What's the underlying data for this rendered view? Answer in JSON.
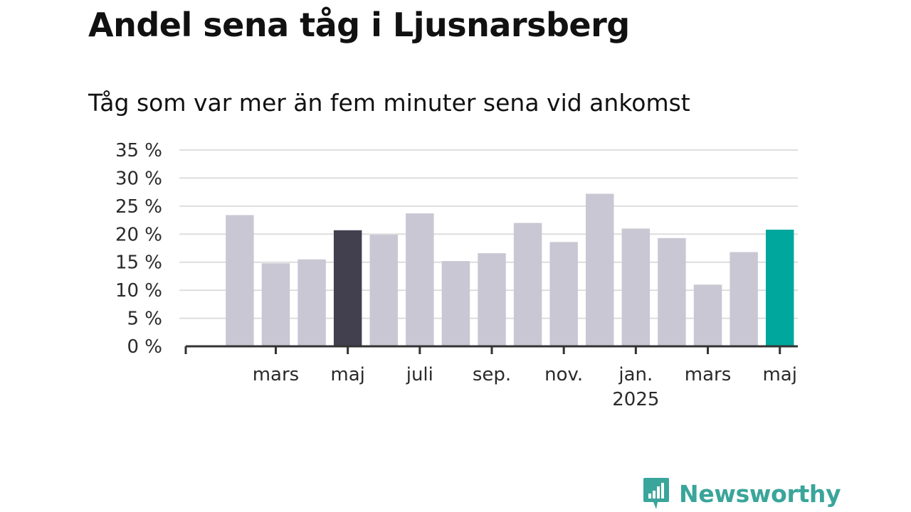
{
  "chart_data": {
    "type": "bar",
    "title": "Andel sena tåg i Ljusnarsberg",
    "subtitle": "Tåg som var mer än fem minuter sena vid ankomst",
    "xlabel": "",
    "ylabel": "",
    "ylim": [
      0,
      35
    ],
    "y_ticks": [
      0,
      5,
      10,
      15,
      20,
      25,
      30,
      35
    ],
    "y_tick_suffix": " %",
    "grid": true,
    "categories": [
      "2024-01",
      "2024-02",
      "2024-03",
      "2024-04",
      "2024-05",
      "2024-06",
      "2024-07",
      "2024-08",
      "2024-09",
      "2024-10",
      "2024-11",
      "2024-12",
      "2025-01",
      "2025-02",
      "2025-03",
      "2025-04",
      "2025-05"
    ],
    "values": [
      null,
      23.4,
      14.8,
      15.5,
      20.7,
      19.9,
      23.7,
      15.2,
      16.6,
      22.0,
      18.6,
      27.2,
      21.0,
      19.3,
      11.0,
      16.8,
      20.8
    ],
    "x_tick_labels": [
      {
        "index": 2,
        "label": "mars"
      },
      {
        "index": 4,
        "label": "maj"
      },
      {
        "index": 6,
        "label": "juli"
      },
      {
        "index": 8,
        "label": "sep."
      },
      {
        "index": 10,
        "label": "nov."
      },
      {
        "index": 12,
        "label": "jan.",
        "sub": "2025"
      },
      {
        "index": 14,
        "label": "mars"
      },
      {
        "index": 16,
        "label": "maj"
      }
    ],
    "highlight": [
      {
        "index": 4,
        "color": "#42404f"
      },
      {
        "index": 16,
        "color": "#00a79d"
      }
    ],
    "colors": {
      "bar": "#c9c7d3",
      "grid": "#dedede",
      "axis": "#333333"
    }
  },
  "brand": {
    "name": "Newsworthy",
    "icon": "newsworthy-logo-icon",
    "color": "#3aa59a"
  }
}
